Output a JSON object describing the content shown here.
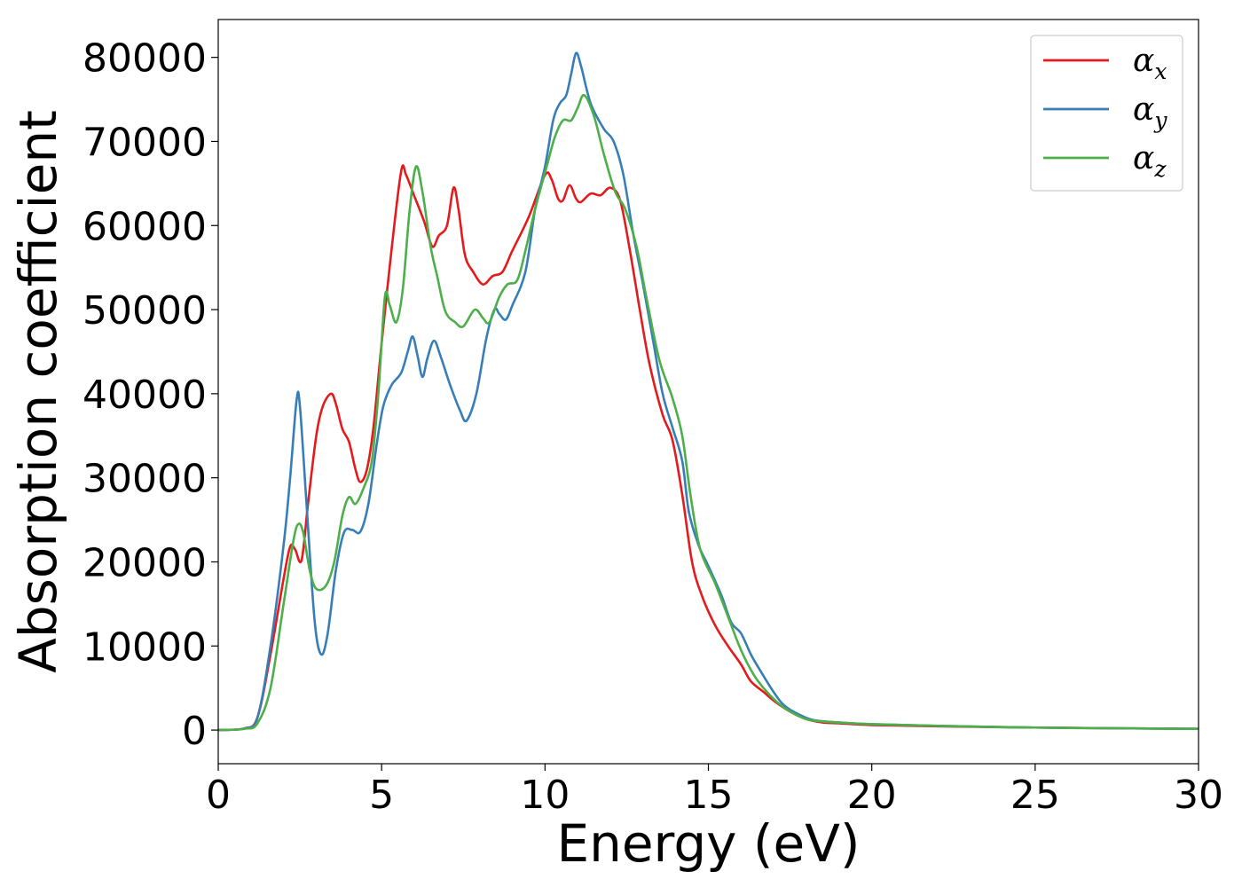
{
  "chart_data": {
    "type": "line",
    "title": "",
    "xlabel": "Energy (eV)",
    "ylabel": "Absorption coefficient",
    "xlim": [
      0,
      30
    ],
    "ylim": [
      -4000,
      84500
    ],
    "xticks": [
      0,
      5,
      10,
      15,
      20,
      25,
      30
    ],
    "xtick_labels": [
      "0",
      "5",
      "10",
      "15",
      "20",
      "25",
      "30"
    ],
    "yticks": [
      0,
      10000,
      20000,
      30000,
      40000,
      50000,
      60000,
      70000,
      80000
    ],
    "ytick_labels": [
      "0",
      "10000",
      "20000",
      "30000",
      "40000",
      "50000",
      "60000",
      "70000",
      "80000"
    ],
    "grid": false,
    "legend_position": "top-right",
    "series": [
      {
        "name": "α_x",
        "legend_base": "α",
        "legend_sub": "x",
        "color": "#e41a1c",
        "points": [
          [
            0,
            0
          ],
          [
            0.8,
            200
          ],
          [
            1.2,
            1500
          ],
          [
            1.6,
            9000
          ],
          [
            2.0,
            18000
          ],
          [
            2.2,
            21800
          ],
          [
            2.35,
            21500
          ],
          [
            2.55,
            20200
          ],
          [
            2.75,
            27000
          ],
          [
            3.0,
            35000
          ],
          [
            3.2,
            38500
          ],
          [
            3.45,
            40000
          ],
          [
            3.6,
            38800
          ],
          [
            3.8,
            35800
          ],
          [
            4.0,
            34300
          ],
          [
            4.2,
            31000
          ],
          [
            4.35,
            29500
          ],
          [
            4.55,
            31000
          ],
          [
            4.75,
            36000
          ],
          [
            5.0,
            46000
          ],
          [
            5.3,
            57000
          ],
          [
            5.6,
            66500
          ],
          [
            5.75,
            66000
          ],
          [
            6.0,
            63500
          ],
          [
            6.3,
            60500
          ],
          [
            6.55,
            57500
          ],
          [
            6.75,
            58800
          ],
          [
            7.0,
            60000
          ],
          [
            7.2,
            64500
          ],
          [
            7.35,
            62000
          ],
          [
            7.55,
            56500
          ],
          [
            7.8,
            54500
          ],
          [
            8.1,
            53000
          ],
          [
            8.4,
            54000
          ],
          [
            8.7,
            54500
          ],
          [
            9.0,
            57000
          ],
          [
            9.5,
            61000
          ],
          [
            10.0,
            66000
          ],
          [
            10.2,
            65500
          ],
          [
            10.4,
            63200
          ],
          [
            10.55,
            63000
          ],
          [
            10.75,
            64800
          ],
          [
            10.95,
            63200
          ],
          [
            11.1,
            62800
          ],
          [
            11.4,
            63800
          ],
          [
            11.7,
            63600
          ],
          [
            12.0,
            64500
          ],
          [
            12.3,
            63000
          ],
          [
            12.6,
            57000
          ],
          [
            12.9,
            50000
          ],
          [
            13.2,
            43500
          ],
          [
            13.6,
            37500
          ],
          [
            13.9,
            34500
          ],
          [
            14.2,
            28000
          ],
          [
            14.5,
            20000
          ],
          [
            14.8,
            16000
          ],
          [
            15.2,
            12500
          ],
          [
            15.6,
            10000
          ],
          [
            16.0,
            7800
          ],
          [
            16.3,
            5800
          ],
          [
            16.7,
            4500
          ],
          [
            17.0,
            3500
          ],
          [
            17.5,
            2200
          ],
          [
            18.0,
            1300
          ],
          [
            18.5,
            900
          ],
          [
            19.0,
            800
          ],
          [
            20.0,
            600
          ],
          [
            22.0,
            450
          ],
          [
            25.0,
            300
          ],
          [
            28.0,
            200
          ],
          [
            30.0,
            150
          ]
        ]
      },
      {
        "name": "α_y",
        "legend_base": "α",
        "legend_sub": "y",
        "color": "#377eb8",
        "points": [
          [
            0,
            0
          ],
          [
            0.8,
            200
          ],
          [
            1.2,
            1500
          ],
          [
            1.6,
            10000
          ],
          [
            2.0,
            22000
          ],
          [
            2.2,
            30000
          ],
          [
            2.4,
            39300
          ],
          [
            2.5,
            38500
          ],
          [
            2.7,
            27000
          ],
          [
            2.95,
            13000
          ],
          [
            3.15,
            9000
          ],
          [
            3.35,
            11500
          ],
          [
            3.6,
            19000
          ],
          [
            3.85,
            23500
          ],
          [
            4.1,
            23800
          ],
          [
            4.35,
            23600
          ],
          [
            4.6,
            27000
          ],
          [
            4.85,
            34000
          ],
          [
            5.05,
            38500
          ],
          [
            5.3,
            41000
          ],
          [
            5.6,
            42500
          ],
          [
            5.8,
            45000
          ],
          [
            5.95,
            46800
          ],
          [
            6.1,
            44500
          ],
          [
            6.25,
            42000
          ],
          [
            6.4,
            44200
          ],
          [
            6.6,
            46300
          ],
          [
            6.8,
            44500
          ],
          [
            7.1,
            41000
          ],
          [
            7.4,
            38000
          ],
          [
            7.6,
            36800
          ],
          [
            7.9,
            40000
          ],
          [
            8.2,
            46500
          ],
          [
            8.45,
            50000
          ],
          [
            8.6,
            49500
          ],
          [
            8.8,
            48800
          ],
          [
            9.0,
            50500
          ],
          [
            9.4,
            54500
          ],
          [
            9.7,
            62000
          ],
          [
            10.0,
            67000
          ],
          [
            10.25,
            72500
          ],
          [
            10.45,
            74500
          ],
          [
            10.65,
            75500
          ],
          [
            10.8,
            78000
          ],
          [
            10.95,
            80500
          ],
          [
            11.1,
            79000
          ],
          [
            11.4,
            74500
          ],
          [
            11.8,
            71500
          ],
          [
            12.1,
            70000
          ],
          [
            12.4,
            66000
          ],
          [
            12.7,
            59000
          ],
          [
            13.0,
            53000
          ],
          [
            13.3,
            46500
          ],
          [
            13.6,
            40000
          ],
          [
            13.9,
            36000
          ],
          [
            14.2,
            32000
          ],
          [
            14.4,
            26000
          ],
          [
            14.7,
            22000
          ],
          [
            15.0,
            19500
          ],
          [
            15.4,
            16000
          ],
          [
            15.7,
            12800
          ],
          [
            16.0,
            11500
          ],
          [
            16.3,
            9000
          ],
          [
            16.6,
            7000
          ],
          [
            17.0,
            4500
          ],
          [
            17.3,
            3000
          ],
          [
            17.7,
            2000
          ],
          [
            18.2,
            1200
          ],
          [
            19.0,
            900
          ],
          [
            20.0,
            700
          ],
          [
            22.0,
            500
          ],
          [
            25.0,
            300
          ],
          [
            28.0,
            200
          ],
          [
            30.0,
            150
          ]
        ]
      },
      {
        "name": "α_z",
        "legend_base": "α",
        "legend_sub": "z",
        "color": "#4daf4a",
        "points": [
          [
            0,
            0
          ],
          [
            0.8,
            150
          ],
          [
            1.2,
            800
          ],
          [
            1.6,
            5000
          ],
          [
            2.0,
            15000
          ],
          [
            2.3,
            22500
          ],
          [
            2.45,
            24500
          ],
          [
            2.6,
            23500
          ],
          [
            2.8,
            19000
          ],
          [
            3.0,
            16800
          ],
          [
            3.3,
            17200
          ],
          [
            3.55,
            20000
          ],
          [
            3.8,
            25500
          ],
          [
            4.0,
            27700
          ],
          [
            4.2,
            26900
          ],
          [
            4.45,
            28800
          ],
          [
            4.7,
            32000
          ],
          [
            4.9,
            40000
          ],
          [
            5.1,
            51500
          ],
          [
            5.25,
            50500
          ],
          [
            5.45,
            48500
          ],
          [
            5.65,
            52500
          ],
          [
            5.85,
            61500
          ],
          [
            6.05,
            67000
          ],
          [
            6.25,
            64000
          ],
          [
            6.5,
            57500
          ],
          [
            6.7,
            54000
          ],
          [
            6.95,
            49800
          ],
          [
            7.25,
            48500
          ],
          [
            7.5,
            48000
          ],
          [
            7.85,
            50000
          ],
          [
            8.1,
            49000
          ],
          [
            8.3,
            48500
          ],
          [
            8.6,
            51500
          ],
          [
            8.85,
            53000
          ],
          [
            9.15,
            53500
          ],
          [
            9.4,
            57000
          ],
          [
            9.7,
            62000
          ],
          [
            10.05,
            67000
          ],
          [
            10.3,
            70500
          ],
          [
            10.55,
            72500
          ],
          [
            10.8,
            72500
          ],
          [
            11.0,
            74000
          ],
          [
            11.2,
            75500
          ],
          [
            11.5,
            73000
          ],
          [
            11.8,
            68500
          ],
          [
            12.15,
            64000
          ],
          [
            12.45,
            62000
          ],
          [
            12.8,
            57500
          ],
          [
            13.1,
            51500
          ],
          [
            13.5,
            44000
          ],
          [
            13.9,
            39500
          ],
          [
            14.2,
            35000
          ],
          [
            14.45,
            28000
          ],
          [
            14.75,
            21500
          ],
          [
            15.2,
            17500
          ],
          [
            15.6,
            13500
          ],
          [
            16.0,
            9500
          ],
          [
            16.4,
            6500
          ],
          [
            16.8,
            4500
          ],
          [
            17.2,
            3000
          ],
          [
            17.6,
            2000
          ],
          [
            18.1,
            1200
          ],
          [
            19.0,
            900
          ],
          [
            20.0,
            700
          ],
          [
            22.0,
            500
          ],
          [
            25.0,
            300
          ],
          [
            28.0,
            200
          ],
          [
            30.0,
            150
          ]
        ]
      }
    ]
  }
}
